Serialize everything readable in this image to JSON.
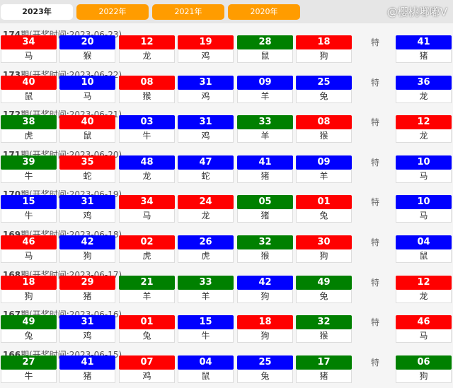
{
  "tabs": [
    {
      "label": "2023年",
      "active": true
    },
    {
      "label": "2022年"
    },
    {
      "label": "2021年"
    },
    {
      "label": "2020年"
    }
  ],
  "special_label": "特",
  "colors": {
    "red": "#ff0000",
    "blue": "#0000ff",
    "green": "#008000"
  },
  "watermark": "@樱桃嘟嘟V",
  "draws": [
    {
      "period": "174",
      "suffix": "期(开奖时间:2023-06-23)",
      "balls": [
        [
          "34",
          "马",
          "red"
        ],
        [
          "20",
          "猴",
          "blue"
        ],
        [
          "12",
          "龙",
          "red"
        ],
        [
          "19",
          "鸡",
          "red"
        ],
        [
          "28",
          "鼠",
          "green"
        ],
        [
          "18",
          "狗",
          "red"
        ]
      ],
      "special": [
        "41",
        "猪",
        "blue"
      ]
    },
    {
      "period": "173",
      "suffix": "期(开奖时间:2023-06-22)",
      "balls": [
        [
          "40",
          "鼠",
          "red"
        ],
        [
          "10",
          "马",
          "blue"
        ],
        [
          "08",
          "猴",
          "red"
        ],
        [
          "31",
          "鸡",
          "blue"
        ],
        [
          "09",
          "羊",
          "blue"
        ],
        [
          "25",
          "兔",
          "blue"
        ]
      ],
      "special": [
        "36",
        "龙",
        "blue"
      ]
    },
    {
      "period": "172",
      "suffix": "期(开奖时间:2023-06-21)",
      "balls": [
        [
          "38",
          "虎",
          "green"
        ],
        [
          "40",
          "鼠",
          "red"
        ],
        [
          "03",
          "牛",
          "blue"
        ],
        [
          "31",
          "鸡",
          "blue"
        ],
        [
          "33",
          "羊",
          "green"
        ],
        [
          "08",
          "猴",
          "red"
        ]
      ],
      "special": [
        "12",
        "龙",
        "red"
      ]
    },
    {
      "period": "171",
      "suffix": "期(开奖时间:2023-06-20)",
      "balls": [
        [
          "39",
          "牛",
          "green"
        ],
        [
          "35",
          "蛇",
          "red"
        ],
        [
          "48",
          "龙",
          "blue"
        ],
        [
          "47",
          "蛇",
          "blue"
        ],
        [
          "41",
          "猪",
          "blue"
        ],
        [
          "09",
          "羊",
          "blue"
        ]
      ],
      "special": [
        "10",
        "马",
        "blue"
      ]
    },
    {
      "period": "170",
      "suffix": "期(开奖时间:2023-06-19)",
      "balls": [
        [
          "15",
          "牛",
          "blue"
        ],
        [
          "31",
          "鸡",
          "blue"
        ],
        [
          "34",
          "马",
          "red"
        ],
        [
          "24",
          "龙",
          "red"
        ],
        [
          "05",
          "猪",
          "green"
        ],
        [
          "01",
          "兔",
          "red"
        ]
      ],
      "special": [
        "10",
        "马",
        "blue"
      ]
    },
    {
      "period": "169",
      "suffix": "期(开奖时间:2023-06-18)",
      "balls": [
        [
          "46",
          "马",
          "red"
        ],
        [
          "42",
          "狗",
          "blue"
        ],
        [
          "02",
          "虎",
          "red"
        ],
        [
          "26",
          "虎",
          "blue"
        ],
        [
          "32",
          "猴",
          "green"
        ],
        [
          "30",
          "狗",
          "red"
        ]
      ],
      "special": [
        "04",
        "鼠",
        "blue"
      ]
    },
    {
      "period": "168",
      "suffix": "期(开奖时间:2023-06-17)",
      "balls": [
        [
          "18",
          "狗",
          "red"
        ],
        [
          "29",
          "猪",
          "red"
        ],
        [
          "21",
          "羊",
          "green"
        ],
        [
          "33",
          "羊",
          "green"
        ],
        [
          "42",
          "狗",
          "blue"
        ],
        [
          "49",
          "兔",
          "green"
        ]
      ],
      "special": [
        "12",
        "龙",
        "red"
      ]
    },
    {
      "period": "167",
      "suffix": "期(开奖时间:2023-06-16)",
      "balls": [
        [
          "49",
          "兔",
          "green"
        ],
        [
          "31",
          "鸡",
          "blue"
        ],
        [
          "01",
          "兔",
          "red"
        ],
        [
          "15",
          "牛",
          "blue"
        ],
        [
          "18",
          "狗",
          "red"
        ],
        [
          "32",
          "猴",
          "green"
        ]
      ],
      "special": [
        "46",
        "马",
        "red"
      ]
    },
    {
      "period": "166",
      "suffix": "期(开奖时间:2023-06-15)",
      "balls": [
        [
          "27",
          "牛",
          "green"
        ],
        [
          "41",
          "猪",
          "blue"
        ],
        [
          "07",
          "鸡",
          "red"
        ],
        [
          "04",
          "鼠",
          "blue"
        ],
        [
          "25",
          "兔",
          "blue"
        ],
        [
          "17",
          "猪",
          "green"
        ]
      ],
      "special": [
        "06",
        "狗",
        "green"
      ]
    }
  ]
}
